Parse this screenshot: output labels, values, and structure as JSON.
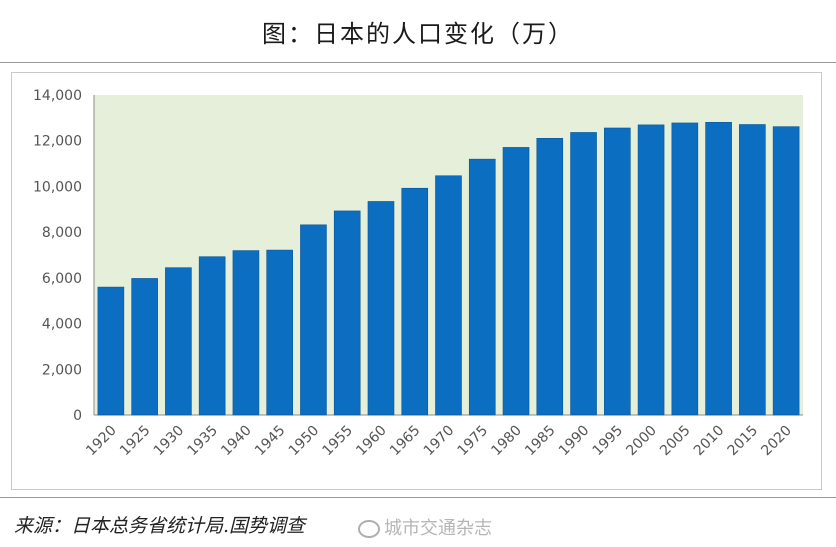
{
  "header": {
    "title": "图：日本的人口变化（万）"
  },
  "footer": {
    "source": "来源：日本总务省统计局.国势调查",
    "watermark": "城市交通杂志",
    "watermark_icon": "weibo-icon"
  },
  "chart_data": {
    "type": "bar",
    "title": "图：日本的人口变化（万）",
    "xlabel": "",
    "ylabel": "",
    "categories": [
      "1920",
      "1925",
      "1930",
      "1935",
      "1940",
      "1945",
      "1950",
      "1955",
      "1960",
      "1965",
      "1970",
      "1975",
      "1980",
      "1985",
      "1990",
      "1995",
      "2000",
      "2005",
      "2010",
      "2015",
      "2020"
    ],
    "values": [
      5596,
      5974,
      6445,
      6925,
      7193,
      7215,
      8320,
      8928,
      9342,
      9921,
      10467,
      11194,
      11706,
      12105,
      12361,
      12557,
      12693,
      12777,
      12806,
      12709,
      12615
    ],
    "ylim": [
      0,
      14000
    ],
    "yticks": [
      0,
      2000,
      4000,
      6000,
      8000,
      10000,
      12000,
      14000
    ],
    "ytick_labels": [
      "0",
      "2,000",
      "4,000",
      "6,000",
      "8,000",
      "10,000",
      "12,000",
      "14,000"
    ],
    "grid": false,
    "colors": {
      "bar": "#0b6ec0",
      "bar_edge": "#0a5699",
      "plot_background": "#e6efda",
      "axis": "#8c8c8c",
      "tick_text": "#555555"
    }
  }
}
